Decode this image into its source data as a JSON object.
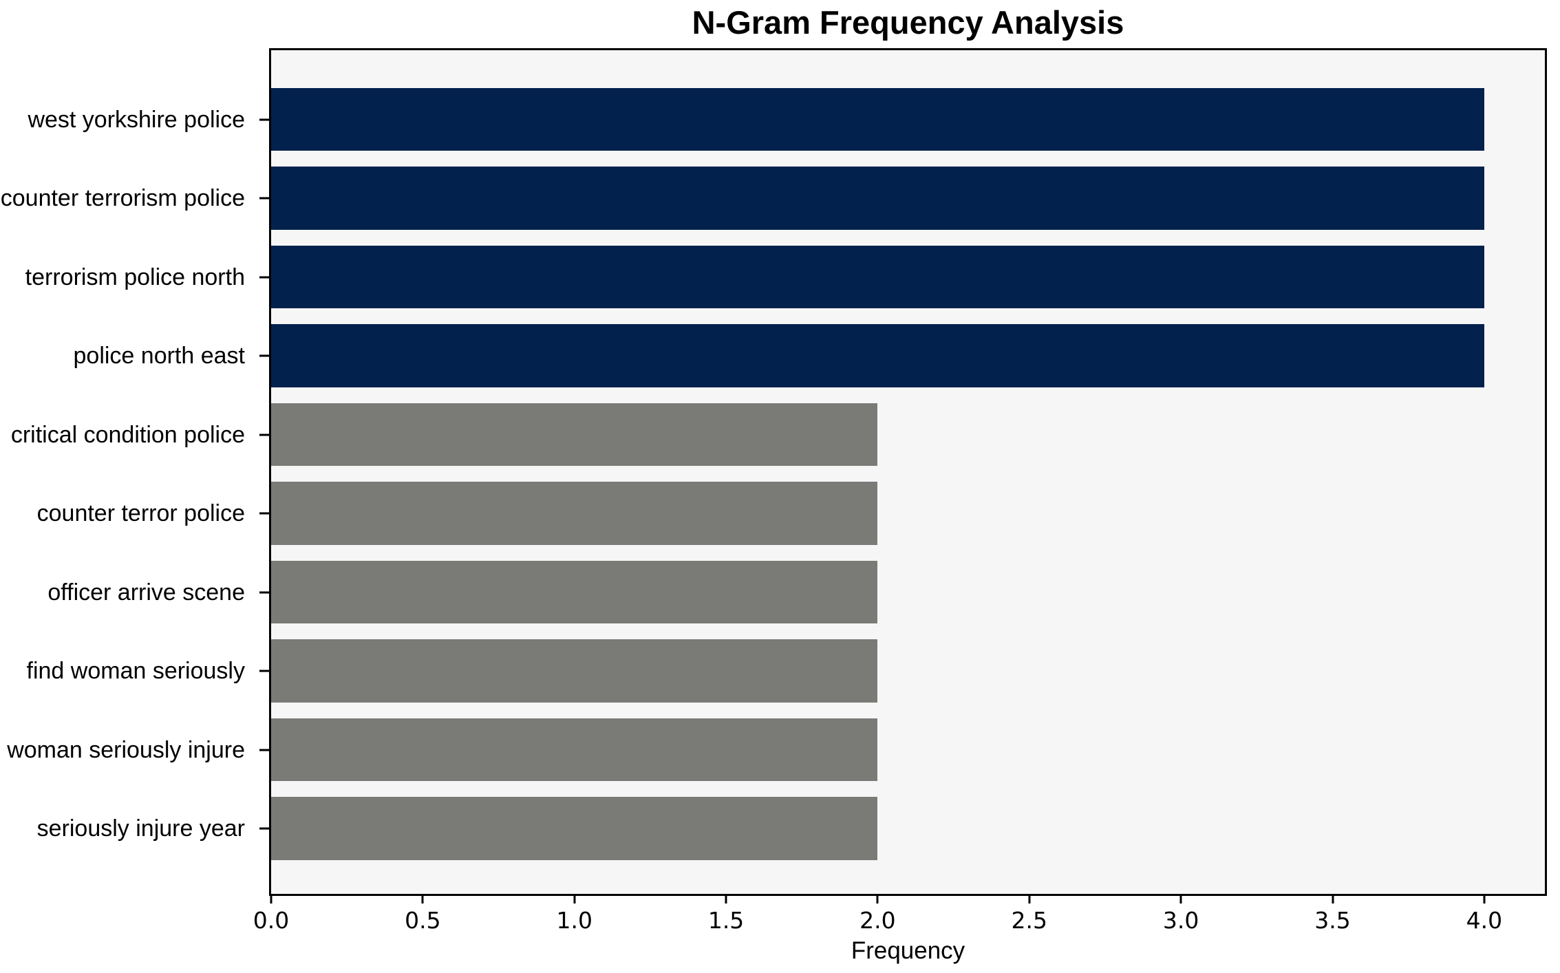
{
  "chart_data": {
    "type": "bar",
    "orientation": "horizontal",
    "title": "N-Gram Frequency Analysis",
    "xlabel": "Frequency",
    "ylabel": "",
    "categories": [
      "west yorkshire police",
      "counter terrorism police",
      "terrorism police north",
      "police north east",
      "critical condition police",
      "counter terror police",
      "officer arrive scene",
      "find woman seriously",
      "woman seriously injure",
      "seriously injure year"
    ],
    "values": [
      4,
      4,
      4,
      4,
      2,
      2,
      2,
      2,
      2,
      2
    ],
    "bar_colors": [
      "#02214d",
      "#02214d",
      "#02214d",
      "#02214d",
      "#7a7a76",
      "#7a7a76",
      "#7a7a76",
      "#7a7a76",
      "#7a7a76",
      "#7a7a76"
    ],
    "xlim": [
      0,
      4.2
    ],
    "xticks": [
      0.0,
      0.5,
      1.0,
      1.5,
      2.0,
      2.5,
      3.0,
      3.5,
      4.0
    ],
    "xtick_labels": [
      "0.0",
      "0.5",
      "1.0",
      "1.5",
      "2.0",
      "2.5",
      "3.0",
      "3.5",
      "4.0"
    ],
    "grid": false,
    "legend": null,
    "bar_height_frac": 0.8,
    "plot_background": "#f6f6f7",
    "figure_background": "#ffffff",
    "axis_color": "#000000"
  }
}
